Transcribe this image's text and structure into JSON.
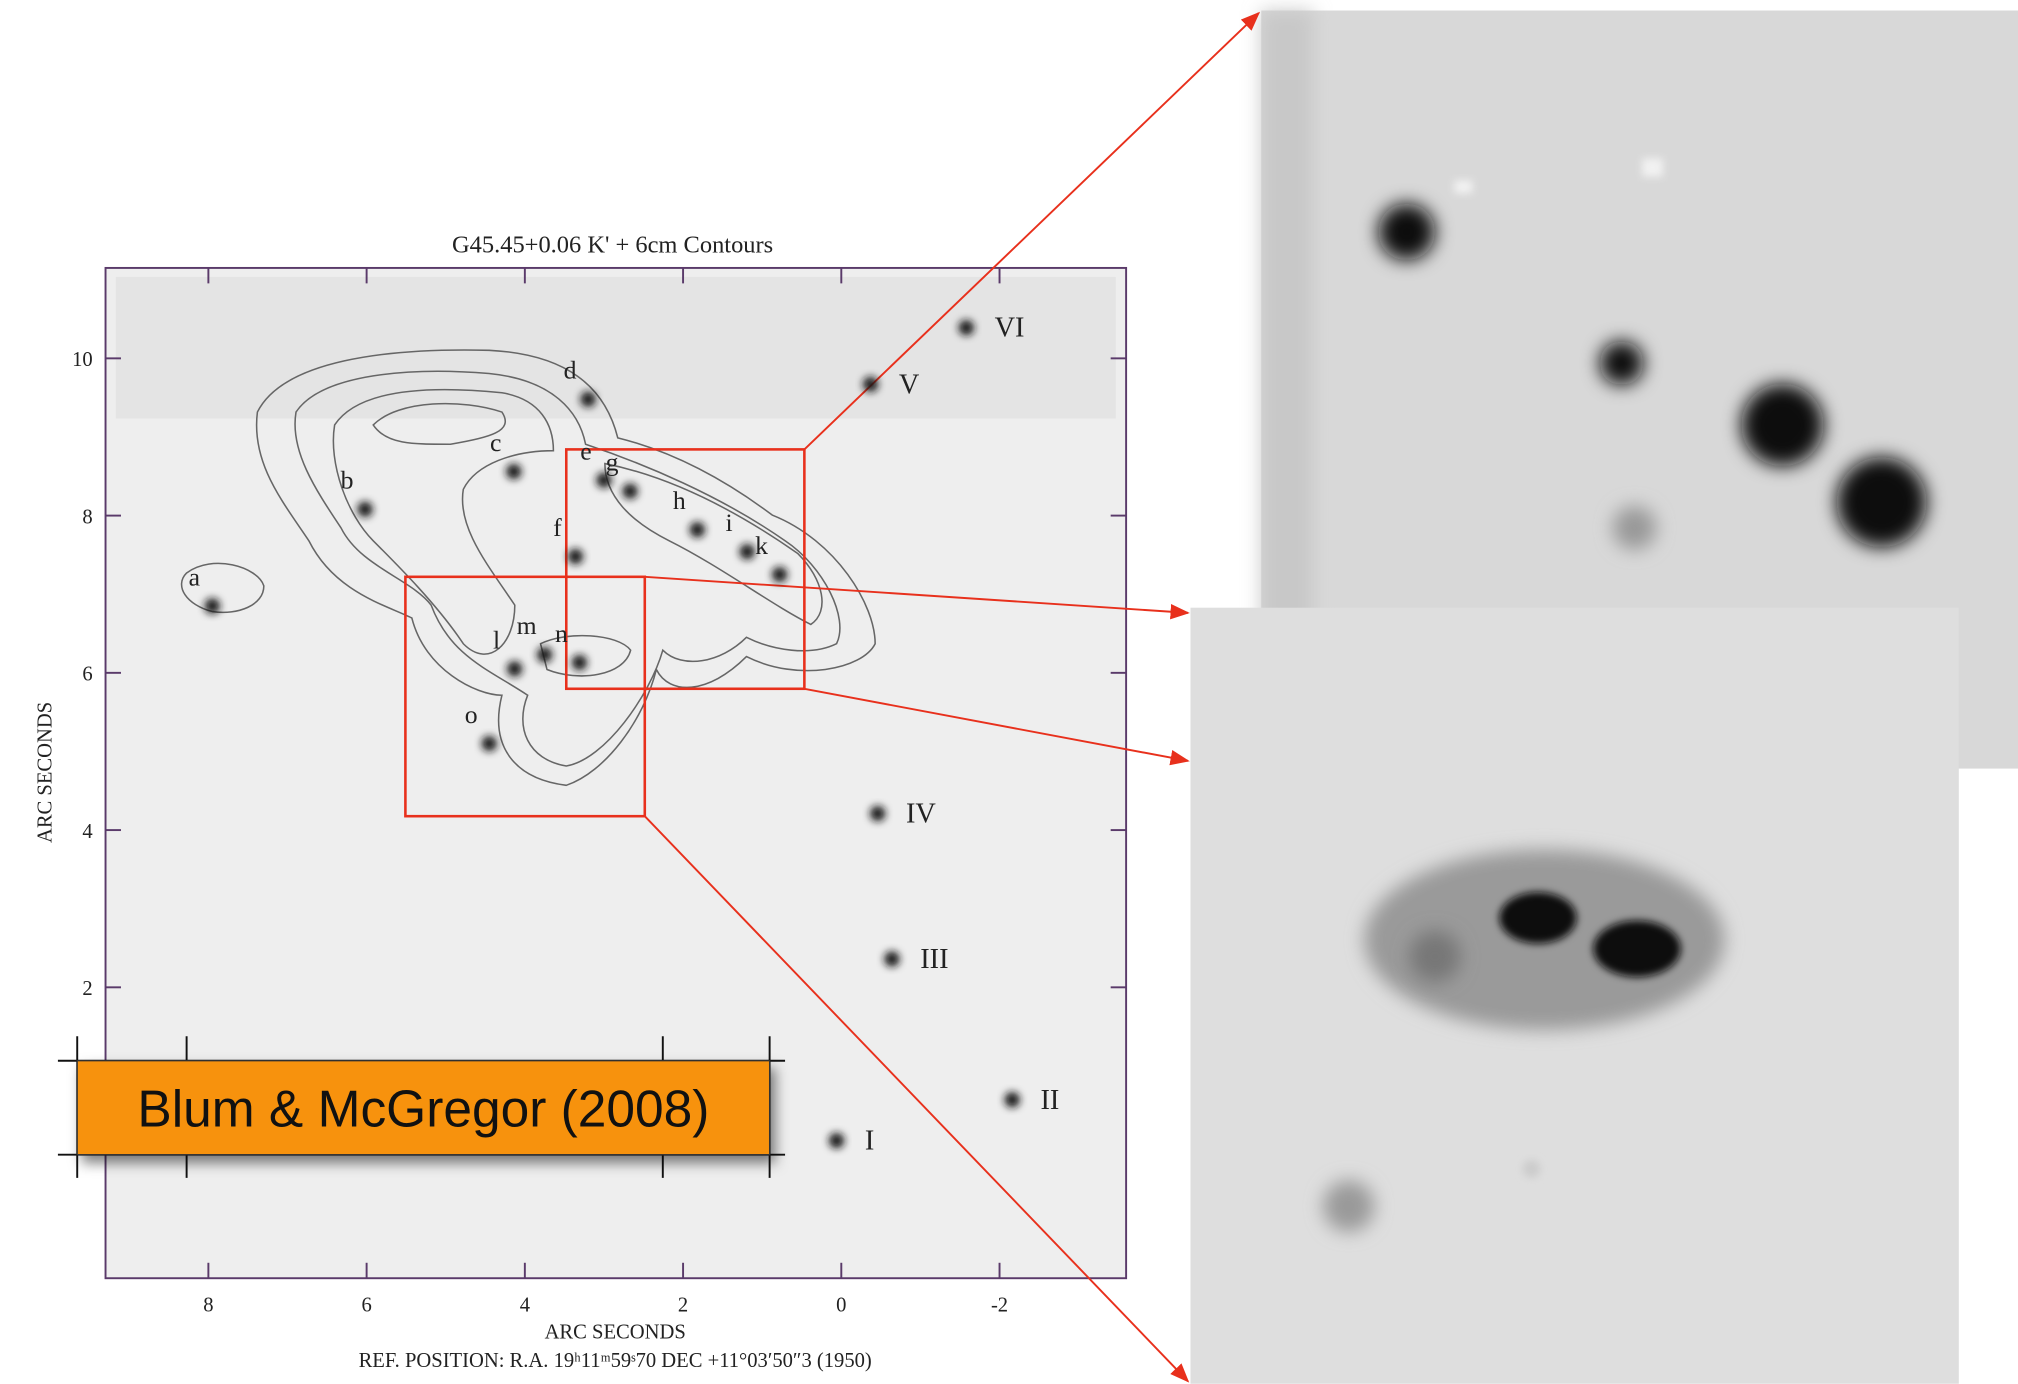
{
  "chart_data": {
    "type": "image-contour",
    "title": "G45.45+0.06 K' + 6cm Contours",
    "x_label": "ARC SECONDS",
    "y_label": "ARC SECONDS",
    "footnote": "REF. POSITION:  R.A. 19ʰ11ᵐ59ˢ70  DEC +11°03′50″3  (1950)",
    "caption": "Blum & McGregor (2008)",
    "xlim": [
      9.3,
      -3.6
    ],
    "ylim": [
      -1.7,
      11.15
    ],
    "xticks": [
      8,
      6,
      4,
      2,
      0,
      -2
    ],
    "yticks": [
      2,
      4,
      6,
      8,
      10
    ],
    "sources": [
      {
        "name": "a",
        "x": 7.95,
        "y": 6.85
      },
      {
        "name": "b",
        "x": 6.02,
        "y": 8.08
      },
      {
        "name": "c",
        "x": 4.14,
        "y": 8.56
      },
      {
        "name": "d",
        "x": 3.2,
        "y": 9.48
      },
      {
        "name": "e",
        "x": 3.0,
        "y": 8.45
      },
      {
        "name": "f",
        "x": 3.36,
        "y": 7.48
      },
      {
        "name": "g",
        "x": 2.67,
        "y": 8.31
      },
      {
        "name": "h",
        "x": 1.82,
        "y": 7.82
      },
      {
        "name": "i",
        "x": 1.19,
        "y": 7.54
      },
      {
        "name": "k",
        "x": 0.78,
        "y": 7.25
      },
      {
        "name": "l",
        "x": 4.13,
        "y": 6.05
      },
      {
        "name": "m",
        "x": 3.75,
        "y": 6.23
      },
      {
        "name": "n",
        "x": 3.31,
        "y": 6.13
      },
      {
        "name": "o",
        "x": 4.45,
        "y": 5.1
      },
      {
        "name": "I",
        "x": 0.06,
        "y": 0.05
      },
      {
        "name": "II",
        "x": -2.16,
        "y": 0.57
      },
      {
        "name": "III",
        "x": -0.64,
        "y": 2.36
      },
      {
        "name": "IV",
        "x": -0.46,
        "y": 4.21
      },
      {
        "name": "V",
        "x": -0.37,
        "y": 9.67
      },
      {
        "name": "VI",
        "x": -1.58,
        "y": 10.39
      }
    ]
  }
}
